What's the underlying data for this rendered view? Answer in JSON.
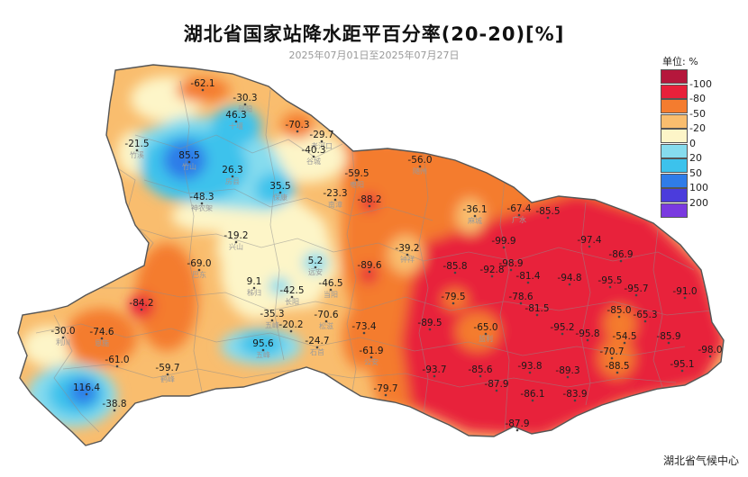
{
  "title": "湖北省国家站降水距平百分率(20-20)[%]",
  "subtitle": "2025年07月01日至2025年07月27日",
  "legend": {
    "unit": "单位: %",
    "bins": [
      {
        "color": "#b5173c",
        "label": "-100"
      },
      {
        "color": "#e8203a",
        "label": "-80"
      },
      {
        "color": "#f47c2f",
        "label": "-50"
      },
      {
        "color": "#f9bd6e",
        "label": "-20"
      },
      {
        "color": "#fdf5c8",
        "label": "0"
      },
      {
        "color": "#86dcee",
        "label": "20"
      },
      {
        "color": "#3cc2ec",
        "label": "50"
      },
      {
        "color": "#2f7ce8",
        "label": "100"
      },
      {
        "color": "#4b3cdc",
        "label": "200"
      },
      {
        "color": "#7a3ae0",
        "label": ""
      }
    ]
  },
  "credit": "湖北省气候中心",
  "stations": [
    {
      "v": "-62.1",
      "name": ""
    },
    {
      "v": "-30.3",
      "name": "郧阳"
    },
    {
      "v": "46.3",
      "name": "十堰"
    },
    {
      "v": "-70.3",
      "name": ""
    },
    {
      "v": "-29.7",
      "name": "老河口"
    },
    {
      "v": "-40.3",
      "name": "谷城"
    },
    {
      "v": "-21.5",
      "name": "竹溪"
    },
    {
      "v": "85.5",
      "name": "竹山"
    },
    {
      "v": "26.3",
      "name": "房县"
    },
    {
      "v": "35.5",
      "name": "保康"
    },
    {
      "v": "-59.5",
      "name": "枣阳"
    },
    {
      "v": "-56.0",
      "name": "随州"
    },
    {
      "v": "-48.3",
      "name": "神农架"
    },
    {
      "v": "-23.3",
      "name": "南漳"
    },
    {
      "v": "-88.2",
      "name": ""
    },
    {
      "v": "-36.1",
      "name": "麻城"
    },
    {
      "v": "-67.4",
      "name": "广水"
    },
    {
      "v": "-85.5",
      "name": ""
    },
    {
      "v": "-19.2",
      "name": "兴山"
    },
    {
      "v": "-39.2",
      "name": "钟祥"
    },
    {
      "v": "-99.9",
      "name": ""
    },
    {
      "v": "-97.4",
      "name": ""
    },
    {
      "v": "5.2",
      "name": "远安"
    },
    {
      "v": "-89.6",
      "name": ""
    },
    {
      "v": "-86.9",
      "name": ""
    },
    {
      "v": "-69.0",
      "name": "巴东"
    },
    {
      "v": "9.1",
      "name": "秭归"
    },
    {
      "v": "-42.5",
      "name": "长阳"
    },
    {
      "v": "-46.5",
      "name": "当阳"
    },
    {
      "v": "-85.8",
      "name": ""
    },
    {
      "v": "-92.8",
      "name": ""
    },
    {
      "v": "-98.9",
      "name": ""
    },
    {
      "v": "-81.4",
      "name": ""
    },
    {
      "v": "-94.8",
      "name": ""
    },
    {
      "v": "-95.5",
      "name": ""
    },
    {
      "v": "-95.7",
      "name": ""
    },
    {
      "v": "-91.0",
      "name": ""
    },
    {
      "v": "-84.2",
      "name": ""
    },
    {
      "v": "-79.5",
      "name": ""
    },
    {
      "v": "-78.6",
      "name": ""
    },
    {
      "v": "-81.5",
      "name": ""
    },
    {
      "v": "-85.0",
      "name": ""
    },
    {
      "v": "-65.3",
      "name": ""
    },
    {
      "v": "-35.3",
      "name": "五峰"
    },
    {
      "v": "-20.2",
      "name": ""
    },
    {
      "v": "-70.6",
      "name": "松滋"
    },
    {
      "v": "-73.4",
      "name": ""
    },
    {
      "v": "-89.5",
      "name": ""
    },
    {
      "v": "-65.0",
      "name": "监利"
    },
    {
      "v": "-95.2",
      "name": ""
    },
    {
      "v": "-95.8",
      "name": ""
    },
    {
      "v": "-54.5",
      "name": ""
    },
    {
      "v": "-30.0",
      "name": "利川"
    },
    {
      "v": "-74.6",
      "name": "恩施"
    },
    {
      "v": "95.6",
      "name": "五峰"
    },
    {
      "v": "-24.7",
      "name": "石首"
    },
    {
      "v": "-61.9",
      "name": "公安"
    },
    {
      "v": "-70.7",
      "name": ""
    },
    {
      "v": "-85.9",
      "name": ""
    },
    {
      "v": "-98.0",
      "name": ""
    },
    {
      "v": "-61.0",
      "name": ""
    },
    {
      "v": "-59.7",
      "name": "鹤峰"
    },
    {
      "v": "-95.1",
      "name": ""
    },
    {
      "v": "-93.7",
      "name": ""
    },
    {
      "v": "-85.6",
      "name": ""
    },
    {
      "v": "-93.8",
      "name": ""
    },
    {
      "v": "-89.3",
      "name": ""
    },
    {
      "v": "-88.5",
      "name": ""
    },
    {
      "v": "116.4",
      "name": ""
    },
    {
      "v": "-38.8",
      "name": ""
    },
    {
      "v": "-79.7",
      "name": ""
    },
    {
      "v": "-87.9",
      "name": ""
    },
    {
      "v": "-86.1",
      "name": ""
    },
    {
      "v": "-83.9",
      "name": ""
    },
    {
      "v": "-87.9",
      "name": ""
    }
  ]
}
